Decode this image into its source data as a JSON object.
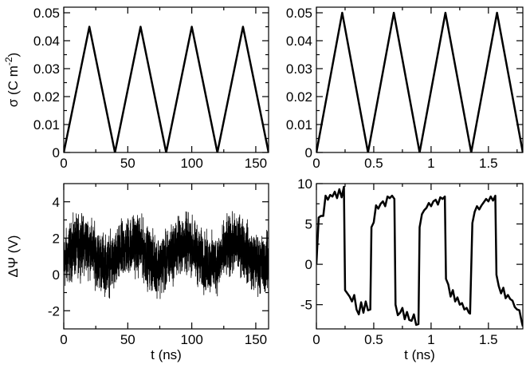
{
  "chart_data": [
    {
      "id": "top-left",
      "type": "line",
      "xlabel": "",
      "ylabel": "σ (C m⁻²)",
      "ylabel_main": "σ (C m",
      "ylabel_sup": "-2",
      "ylabel_close": ")",
      "xlim": [
        0,
        160
      ],
      "ylim": [
        0,
        0.052
      ],
      "xticks": [
        0,
        50,
        100,
        150
      ],
      "xtick_labels": [
        "0",
        "50",
        "100",
        "150"
      ],
      "yticks": [
        0,
        0.01,
        0.02,
        0.03,
        0.04,
        0.05
      ],
      "ytick_labels": [
        "0",
        "0.01",
        "0.02",
        "0.03",
        "0.04",
        "0.05"
      ],
      "x": [
        0,
        20,
        40,
        60,
        80,
        100,
        120,
        140,
        160
      ],
      "y": [
        0,
        0.045,
        0,
        0.045,
        0,
        0.045,
        0,
        0.045,
        0
      ],
      "color": "#000000",
      "stroke_width": 2.5,
      "grid": false
    },
    {
      "id": "top-right",
      "type": "line",
      "xlabel": "",
      "ylabel": "",
      "xlim": [
        0,
        1.8
      ],
      "ylim": [
        0,
        0.052
      ],
      "xticks": [
        0,
        0.5,
        1,
        1.5
      ],
      "xtick_labels": [
        "0",
        "0.5",
        "1",
        "1.5"
      ],
      "yticks": [
        0,
        0.01,
        0.02,
        0.03,
        0.04,
        0.05
      ],
      "ytick_labels": [
        "0",
        "0.01",
        "0.02",
        "0.03",
        "0.04",
        "0.05"
      ],
      "x": [
        0,
        0.225,
        0.45,
        0.675,
        0.9,
        1.125,
        1.35,
        1.575,
        1.8
      ],
      "y": [
        0,
        0.05,
        0,
        0.05,
        0,
        0.05,
        0,
        0.05,
        0
      ],
      "color": "#000000",
      "stroke_width": 2.5,
      "grid": false
    },
    {
      "id": "bottom-left",
      "type": "line",
      "xlabel": "t (ns)",
      "ylabel": "ΔΨ (V)",
      "xlim": [
        0,
        160
      ],
      "ylim": [
        -3,
        5
      ],
      "xticks": [
        0,
        50,
        100,
        150
      ],
      "xtick_labels": [
        "0",
        "50",
        "100",
        "150"
      ],
      "yticks": [
        -2,
        0,
        2,
        4
      ],
      "ytick_labels": [
        "-2",
        "0",
        "2",
        "4"
      ],
      "noisy_trace": {
        "t_start": 0,
        "t_end": 160,
        "samples": 3200,
        "period": 40,
        "mean": 1.1,
        "amplitude": 0.9,
        "noise_amplitude": 1.5,
        "peak_values": [
          3.6,
          4.1,
          4.0,
          3.3
        ],
        "trough_values": [
          -1.7,
          -2.1,
          -1.9,
          -1.8
        ]
      },
      "color": "#000000",
      "stroke_width": 0.8,
      "grid": false
    },
    {
      "id": "bottom-right",
      "type": "line",
      "xlabel": "t (ns)",
      "ylabel": "",
      "xlim": [
        0,
        1.8
      ],
      "ylim": [
        -8,
        10
      ],
      "xticks": [
        0,
        0.5,
        1,
        1.5
      ],
      "xtick_labels": [
        "0",
        "0.5",
        "1",
        "1.5"
      ],
      "yticks": [
        -5,
        0,
        5,
        10
      ],
      "ytick_labels": [
        "-5",
        "0",
        "5",
        "10"
      ],
      "x": [
        0,
        0.02,
        0.04,
        0.06,
        0.08,
        0.1,
        0.12,
        0.14,
        0.16,
        0.18,
        0.2,
        0.22,
        0.24,
        0.25,
        0.27,
        0.29,
        0.31,
        0.33,
        0.35,
        0.37,
        0.39,
        0.41,
        0.43,
        0.45,
        0.47,
        0.48,
        0.5,
        0.52,
        0.54,
        0.56,
        0.58,
        0.6,
        0.62,
        0.64,
        0.66,
        0.68,
        0.69,
        0.71,
        0.73,
        0.75,
        0.77,
        0.79,
        0.81,
        0.83,
        0.85,
        0.87,
        0.89,
        0.9,
        0.92,
        0.94,
        0.96,
        0.98,
        1.0,
        1.02,
        1.04,
        1.06,
        1.08,
        1.1,
        1.12,
        1.13,
        1.15,
        1.17,
        1.19,
        1.21,
        1.23,
        1.25,
        1.27,
        1.29,
        1.31,
        1.33,
        1.34,
        1.36,
        1.38,
        1.4,
        1.42,
        1.44,
        1.46,
        1.48,
        1.5,
        1.52,
        1.54,
        1.56,
        1.57,
        1.59,
        1.61,
        1.63,
        1.65,
        1.67,
        1.69,
        1.71,
        1.73,
        1.75,
        1.77,
        1.79,
        1.8
      ],
      "y": [
        0,
        5.8,
        6.0,
        6.0,
        8.5,
        8.0,
        8.6,
        8.4,
        9.0,
        8.2,
        9.3,
        8.3,
        9.6,
        -3.2,
        -3.6,
        -4.0,
        -4.6,
        -3.8,
        -5.6,
        -6.2,
        -4.7,
        -6.0,
        -4.6,
        -5.7,
        -5.6,
        4.6,
        5.2,
        7.3,
        6.9,
        7.5,
        7.8,
        7.2,
        8.4,
        8.2,
        8.5,
        8.1,
        -5.0,
        -6.3,
        -6.0,
        -5.4,
        -6.8,
        -5.9,
        -6.9,
        -7.0,
        -6.2,
        -7.5,
        -7.4,
        4.6,
        6.2,
        6.7,
        7.0,
        7.6,
        7.2,
        7.8,
        8.0,
        7.4,
        8.3,
        8.1,
        8.4,
        -1.8,
        -2.5,
        -4.0,
        -3.2,
        -4.6,
        -4.1,
        -5.0,
        -4.8,
        -5.6,
        -5.4,
        -6.0,
        -6.1,
        5.1,
        6.5,
        7.2,
        6.8,
        7.3,
        7.7,
        8.1,
        7.8,
        8.4,
        7.9,
        8.5,
        -1.3,
        -2.7,
        -3.6,
        -2.9,
        -4.2,
        -3.8,
        -4.3,
        -4.5,
        -5.3,
        -5.6,
        -5.7,
        -7.1,
        -7.7
      ],
      "color": "#000000",
      "stroke_width": 2.5,
      "grid": false
    }
  ]
}
